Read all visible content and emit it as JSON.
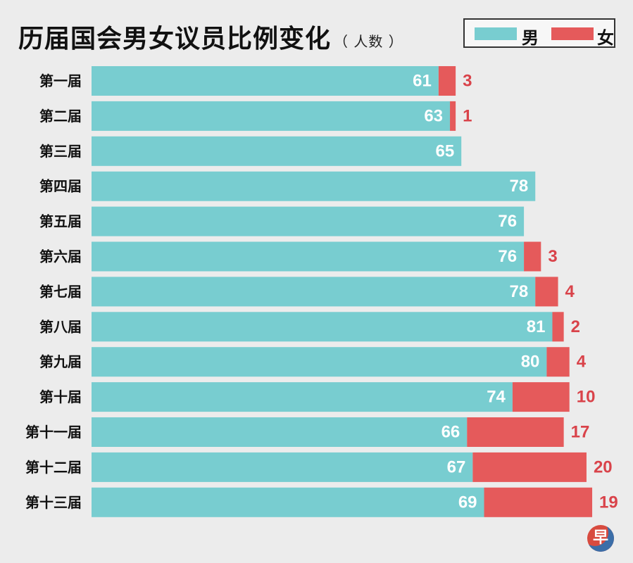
{
  "title": "历届国会男女议员比例变化",
  "unit": "（ 人数 ）",
  "colors": {
    "male": "#78cdd0",
    "female": "#e55a5b",
    "label_female": "#d9434a"
  },
  "legend": {
    "male": "男",
    "female": "女"
  },
  "logo_text": "早",
  "chart_data": {
    "type": "bar",
    "orientation": "horizontal",
    "stacked": true,
    "categories": [
      "第一届",
      "第二届",
      "第三届",
      "第四届",
      "第五届",
      "第六届",
      "第七届",
      "第八届",
      "第九届",
      "第十届",
      "第十一届",
      "第十二届",
      "第十三届"
    ],
    "series": [
      {
        "name": "男",
        "values": [
          61,
          63,
          65,
          78,
          76,
          76,
          78,
          81,
          80,
          74,
          66,
          67,
          69
        ]
      },
      {
        "name": "女",
        "values": [
          3,
          1,
          0,
          0,
          0,
          3,
          4,
          2,
          4,
          10,
          17,
          20,
          19
        ]
      }
    ],
    "title": "历届国会男女议员比例变化",
    "xlabel": "",
    "ylabel": ""
  }
}
